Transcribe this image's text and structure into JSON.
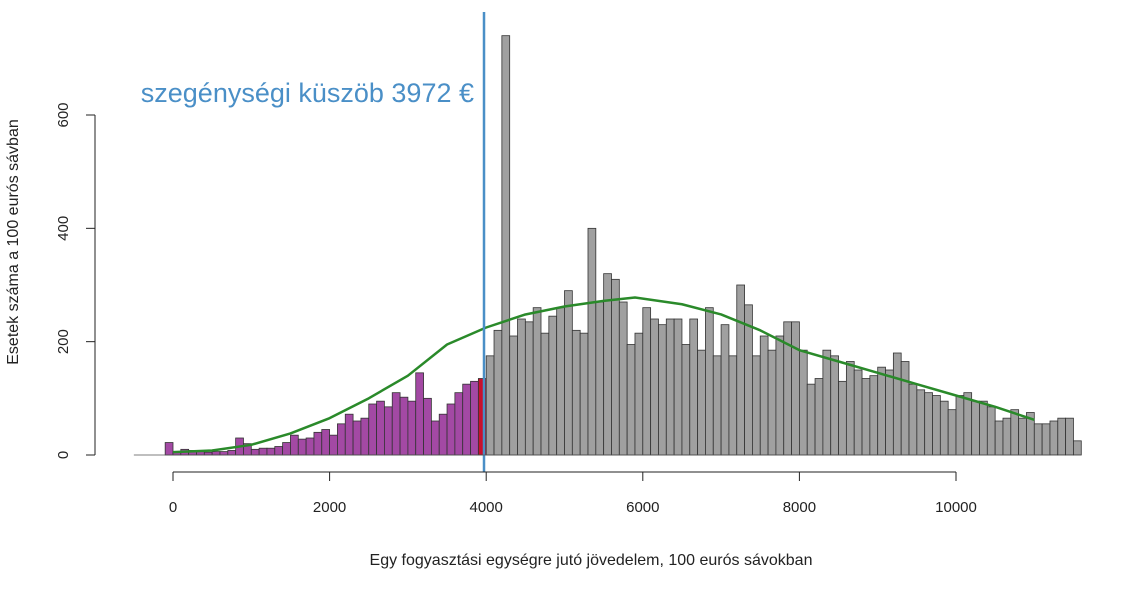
{
  "chart_data": {
    "type": "bar",
    "xlabel": "Egy fogyasztási egységre jutó jövedelem, 100 eurós sávokban",
    "ylabel": "Esetek száma a 100 eurós sávban",
    "xlim": [
      -500,
      11200
    ],
    "ylim": [
      0,
      750
    ],
    "x_ticks": [
      0,
      2000,
      4000,
      6000,
      8000,
      10000
    ],
    "y_ticks": [
      0,
      200,
      400,
      600
    ],
    "bin_width": 100,
    "colors": {
      "below_threshold": "#a349a4",
      "at_threshold": "#c8102e",
      "above_threshold": "#a0a0a0",
      "threshold_line": "#4a8fc7",
      "density_curve": "#2a8a2a"
    },
    "threshold": {
      "value": 3972,
      "label": "szegénységi küszöb 3972 €"
    },
    "bins_start": -100,
    "values": [
      22,
      5,
      10,
      8,
      8,
      5,
      6,
      6,
      8,
      30,
      20,
      10,
      12,
      12,
      15,
      22,
      35,
      28,
      30,
      40,
      45,
      35,
      55,
      72,
      60,
      65,
      90,
      95,
      85,
      110,
      102,
      95,
      145,
      100,
      60,
      72,
      90,
      110,
      125,
      130,
      135,
      175,
      220,
      740,
      210,
      240,
      235,
      260,
      215,
      245,
      260,
      290,
      220,
      215,
      400,
      270,
      320,
      310,
      270,
      195,
      215,
      260,
      240,
      230,
      240,
      240,
      195,
      240,
      185,
      260,
      175,
      230,
      175,
      300,
      265,
      175,
      210,
      185,
      210,
      235,
      235,
      185,
      125,
      135,
      185,
      175,
      130,
      165,
      150,
      135,
      140,
      155,
      150,
      180,
      165,
      125,
      115,
      110,
      105,
      95,
      80,
      105,
      110,
      95,
      95,
      85,
      60,
      65,
      80,
      65,
      75,
      55,
      55,
      60,
      65,
      65,
      25
    ],
    "density_curve": {
      "name": "",
      "x": [
        0,
        500,
        1000,
        1500,
        2000,
        2500,
        3000,
        3500,
        4000,
        4500,
        5000,
        5500,
        5900,
        6500,
        7000,
        7500,
        8000,
        8500,
        9000,
        9500,
        10000,
        10500,
        11000
      ],
      "y": [
        5,
        8,
        18,
        38,
        65,
        100,
        140,
        195,
        225,
        248,
        262,
        272,
        278,
        266,
        248,
        220,
        185,
        165,
        145,
        125,
        105,
        85,
        62
      ]
    }
  }
}
